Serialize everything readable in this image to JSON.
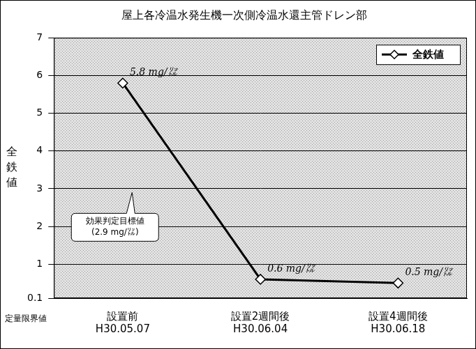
{
  "chart_data": {
    "type": "line",
    "title": "屋上各冷温水発生機一次側冷温水還主管ドレン部",
    "y_label": "全鉄値",
    "categories": [
      [
        "設置前",
        "H30.05.07"
      ],
      [
        "設置2週間後",
        "H30.06.04"
      ],
      [
        "設置4週間後",
        "H30.06.18"
      ]
    ],
    "series": [
      {
        "name": "全鉄値",
        "color": "#000000",
        "marker": "diamond",
        "line_style": "solid",
        "values": [
          5.8,
          0.6,
          0.5
        ],
        "value_labels": [
          "5.8 mg/㍑",
          "0.6 mg/㍑",
          "0.5 mg/㍑"
        ]
      }
    ],
    "data_labels": true,
    "ylim": [
      0.1,
      7
    ],
    "yticks": [
      0.1,
      1,
      2,
      3,
      4,
      5,
      6,
      7
    ],
    "grid": true,
    "legend": "upper right",
    "annotations": [
      {
        "label": [
          "効果判定目標値",
          "(2.9 mg/㍑)"
        ],
        "value": 2.9
      },
      {
        "label": "定量限界値",
        "value": 0.1
      }
    ]
  }
}
